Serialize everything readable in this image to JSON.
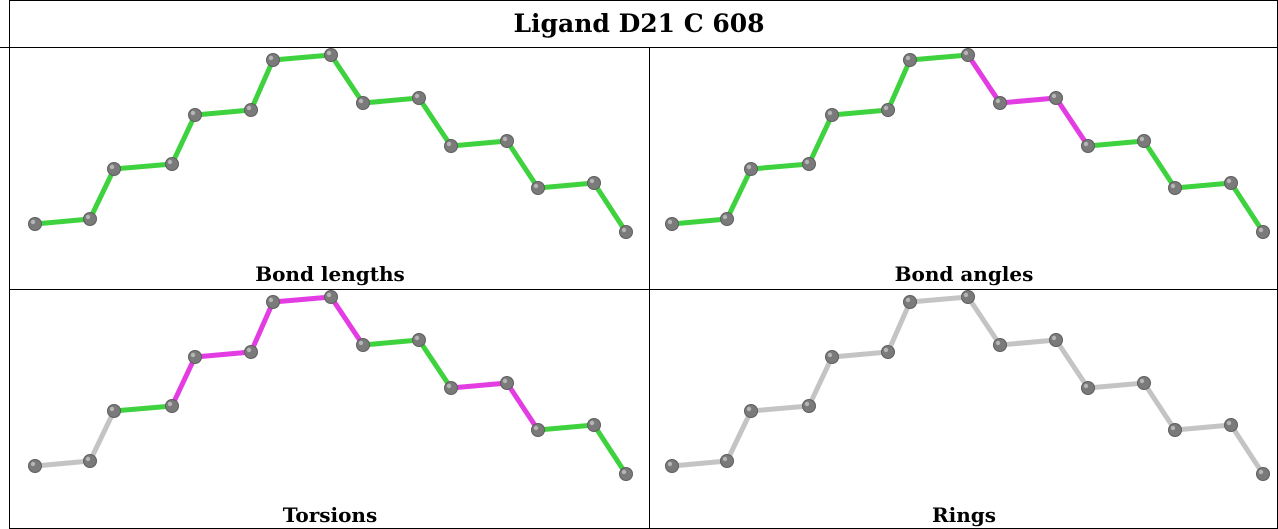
{
  "title": "Ligand D21 C 608",
  "panels": [
    {
      "label": "Bond lengths",
      "bond_colors": [
        "green",
        "green",
        "green",
        "green",
        "green",
        "green",
        "green",
        "green",
        "green",
        "green",
        "green",
        "green",
        "green",
        "green",
        "green",
        "green",
        "green"
      ]
    },
    {
      "label": "Bond angles",
      "bond_colors": [
        "green",
        "green",
        "green",
        "green",
        "green",
        "green",
        "green",
        "magenta",
        "magenta",
        "magenta",
        "green",
        "green",
        "green",
        "green",
        "green",
        "green",
        "green"
      ]
    },
    {
      "label": "Torsions",
      "bond_colors": [
        "gray",
        "gray",
        "green",
        "magenta",
        "magenta",
        "magenta",
        "magenta",
        "magenta",
        "green",
        "green",
        "magenta",
        "magenta",
        "green",
        "green",
        "green",
        "gray",
        "gray"
      ]
    },
    {
      "label": "Rings",
      "bond_colors": [
        "gray",
        "gray",
        "gray",
        "gray",
        "gray",
        "gray",
        "gray",
        "gray",
        "gray",
        "gray",
        "gray",
        "gray",
        "gray",
        "gray",
        "gray",
        "gray",
        "gray"
      ]
    }
  ],
  "colors": {
    "green": "#3ed23e",
    "magenta": "#e23ce2",
    "gray": "#c4c4c4",
    "atom": "#7a7a7a"
  }
}
